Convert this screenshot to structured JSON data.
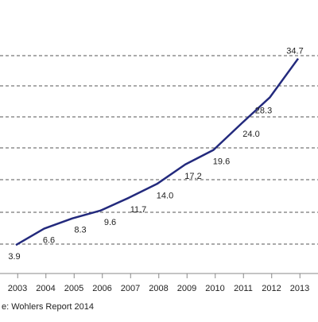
{
  "source_note": "e: Wohlers Report 2014",
  "colors": {
    "line": "#232a7d",
    "grid": "#555555",
    "axis": "#888888",
    "text": "#222222",
    "background": "#ffffff"
  },
  "chart_data": {
    "type": "line",
    "x": [
      "2003",
      "2004",
      "2005",
      "2006",
      "2007",
      "2008",
      "2009",
      "2010",
      "2011",
      "2012",
      "2013"
    ],
    "series": [
      {
        "values": [
          3.9,
          6.6,
          8.3,
          9.6,
          11.7,
          14.0,
          17.2,
          19.6,
          24.0,
          28.3,
          34.7
        ],
        "labels": [
          "3.9",
          "6.6",
          "8.3",
          "9.6",
          "11.7",
          "14.0",
          "17.2",
          "19.6",
          "24.0",
          "28.3",
          "34.7"
        ]
      }
    ],
    "title": "",
    "xlabel": "",
    "ylabel": "",
    "grid": "horizontal dashed",
    "legend": "none"
  }
}
